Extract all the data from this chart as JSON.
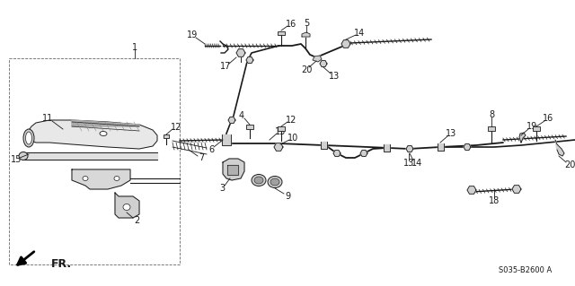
{
  "bg_color": "#ffffff",
  "diagram_code": "S035-B2600 A",
  "fr_label": "FR.",
  "figsize": [
    6.4,
    3.19
  ],
  "dpi": 100,
  "lc": "#1a1a1a",
  "tc": "#1a1a1a",
  "gray": "#888888",
  "lightgray": "#cccccc",
  "darkgray": "#555555"
}
